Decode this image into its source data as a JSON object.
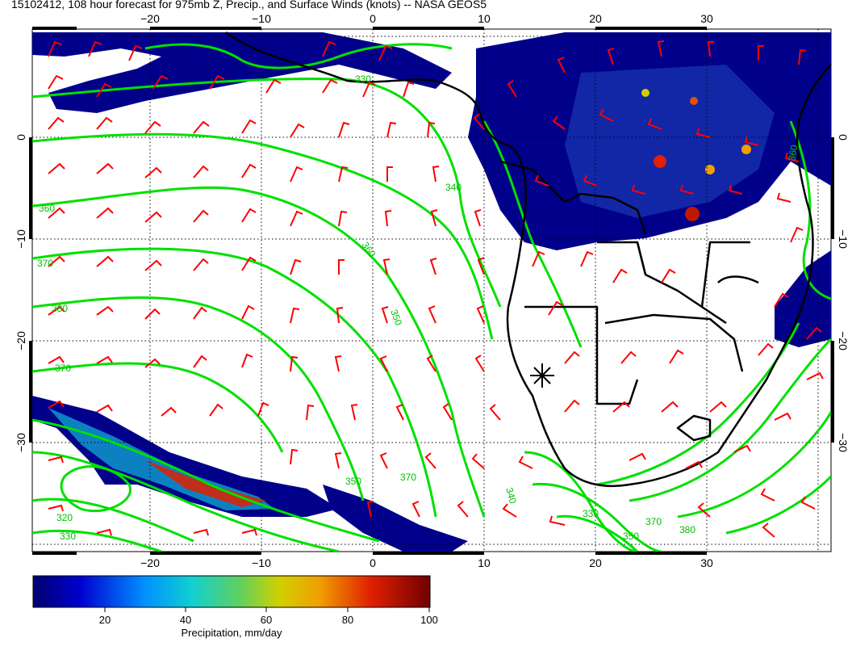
{
  "title": "15102412, 108 hour forecast for 975mb Z, Precip., and Surface Winds (knots) -- NASA GEOS5",
  "colors": {
    "precip_low": "#00008b",
    "precip_mid": "#3050c8",
    "contour": "#00e000",
    "coast": "#000000",
    "barb": "#ff0000"
  },
  "axes": {
    "lon_ticks": [
      "−20",
      "−10",
      "0",
      "10",
      "20",
      "30"
    ],
    "lat_ticks": [
      "0",
      "−10",
      "−20",
      "−30"
    ]
  },
  "contours": {
    "labels": [
      "320",
      "330",
      "340",
      "350",
      "360",
      "370",
      "380"
    ]
  },
  "colorbar": {
    "title": "Precipitation, mm/day",
    "ticks": [
      "20",
      "40",
      "60",
      "80",
      "100"
    ]
  },
  "marker": {
    "icon": "asterisk-marker-icon"
  }
}
